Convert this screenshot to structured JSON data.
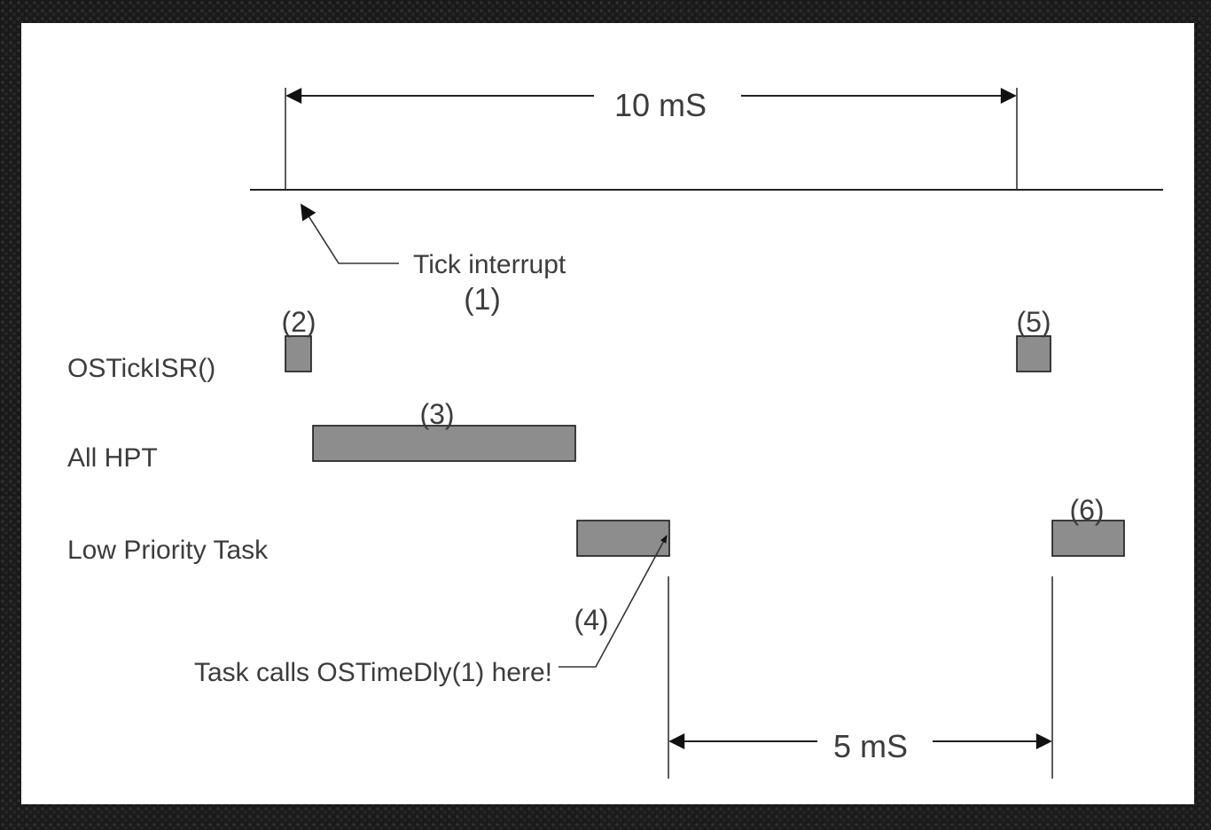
{
  "diagram": {
    "period_label": "10 mS",
    "delay_label": "5 mS",
    "tick_note": "Tick interrupt",
    "rows": {
      "isr": "OSTickISR()",
      "hpt": "All HPT",
      "low": "Low Priority Task"
    },
    "markers": {
      "m1": "(1)",
      "m2": "(2)",
      "m3": "(3)",
      "m4": "(4)",
      "m5": "(5)",
      "m6": "(6)"
    },
    "call_note": "Task calls OSTimeDly(1) here!"
  },
  "colors": {
    "bar_fill": "#8d8d8d",
    "line": "#222222",
    "text": "#3c3c3c"
  }
}
